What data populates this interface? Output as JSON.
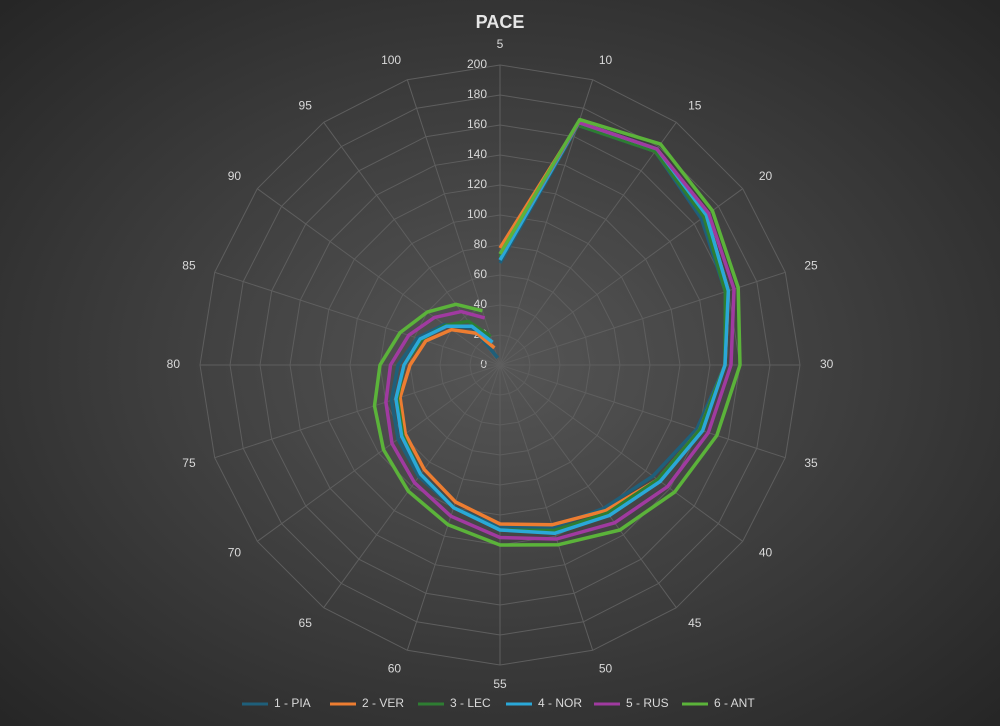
{
  "chart_data": {
    "type": "radar",
    "title": "PACE",
    "categories": [
      5,
      10,
      15,
      20,
      25,
      30,
      35,
      40,
      45,
      50,
      55,
      60,
      65,
      70,
      75,
      80,
      85,
      90,
      95,
      100
    ],
    "rlim": [
      0,
      200
    ],
    "rticks": [
      0,
      20,
      40,
      60,
      80,
      100,
      120,
      140,
      160,
      180,
      200
    ],
    "grid": true,
    "legend": "bottom",
    "series": [
      {
        "name": "1 - PIA",
        "color": "#1f5f7a",
        "values": [
          68,
          168,
          176,
          166,
          158,
          150,
          138,
          126,
          118,
          114,
          108,
          100,
          92,
          84,
          76,
          68,
          58,
          46,
          30,
          5
        ]
      },
      {
        "name": "2 - VER",
        "color": "#ed7d31",
        "values": [
          78,
          170,
          176,
          170,
          160,
          150,
          140,
          130,
          120,
          112,
          106,
          96,
          86,
          78,
          70,
          60,
          52,
          40,
          26,
          12
        ]
      },
      {
        "name": "3 - LEC",
        "color": "#2e7d32",
        "values": [
          72,
          168,
          176,
          168,
          158,
          150,
          140,
          130,
          122,
          116,
          110,
          100,
          90,
          80,
          72,
          64,
          55,
          45,
          36,
          20
        ]
      },
      {
        "name": "4 - NOR",
        "color": "#2aa8d8",
        "values": [
          70,
          170,
          178,
          170,
          160,
          150,
          142,
          132,
          124,
          118,
          110,
          100,
          90,
          81,
          73,
          64,
          56,
          44,
          32,
          16
        ]
      },
      {
        "name": "5 - RUS",
        "color": "#a03aa0",
        "values": [
          74,
          170,
          178,
          172,
          164,
          154,
          146,
          138,
          130,
          122,
          115,
          106,
          97,
          89,
          80,
          73,
          64,
          54,
          44,
          33
        ]
      },
      {
        "name": "6 - ANT",
        "color": "#5bb33a",
        "values": [
          74,
          172,
          182,
          175,
          167,
          160,
          152,
          144,
          136,
          126,
          120,
          112,
          104,
          96,
          88,
          80,
          70,
          60,
          50,
          38
        ]
      }
    ]
  }
}
